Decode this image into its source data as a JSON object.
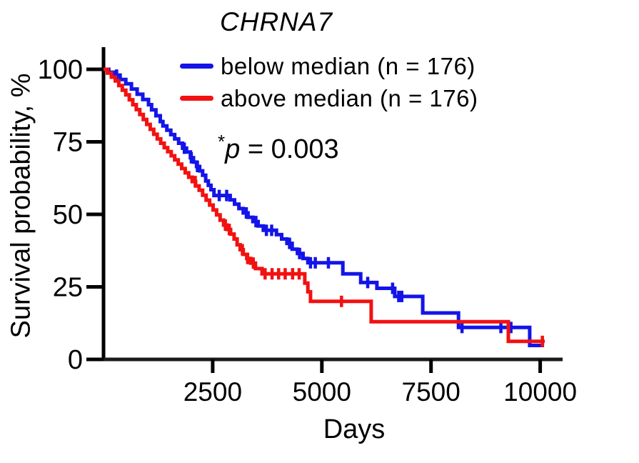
{
  "figure": {
    "title": "CHRNA7",
    "x_axis_label": "Days",
    "y_axis_label": "Survival probability, %",
    "p_value": {
      "star": "*",
      "variable": "p",
      "rest": " = 0.003"
    }
  },
  "legend": {
    "items": [
      {
        "label": "below median (n = 176)",
        "color": "#1414e8"
      },
      {
        "label": "above median (n = 176)",
        "color": "#f21111"
      }
    ]
  },
  "chart_data": {
    "type": "line",
    "subtype": "kaplan-meier-step",
    "title": "CHRNA7",
    "xlabel": "Days",
    "ylabel": "Survival probability, %",
    "annotation": "*p = 0.003",
    "xlim": [
      0,
      10500
    ],
    "ylim": [
      0,
      100
    ],
    "x_ticks": [
      "2500",
      "5000",
      "7500",
      "10000"
    ],
    "x_tick_values": [
      2500,
      5000,
      7500,
      10000
    ],
    "y_ticks": [
      "0",
      "25",
      "50",
      "75",
      "100"
    ],
    "y_tick_values": [
      0,
      25,
      50,
      75,
      100
    ],
    "grid": false,
    "legend_position": "top",
    "axis_color": "#000000",
    "series": [
      {
        "id": "below-median",
        "name": "below median (n = 176)",
        "color": "#1414e8",
        "end_day": 10090,
        "steps": [
          [
            0,
            100
          ],
          [
            120,
            99
          ],
          [
            250,
            98
          ],
          [
            380,
            96.5
          ],
          [
            510,
            95
          ],
          [
            640,
            93.2
          ],
          [
            770,
            91.4
          ],
          [
            900,
            89.6
          ],
          [
            1030,
            87.8
          ],
          [
            1100,
            86
          ],
          [
            1200,
            84
          ],
          [
            1300,
            82
          ],
          [
            1360,
            80.5
          ],
          [
            1450,
            79
          ],
          [
            1540,
            77.5
          ],
          [
            1630,
            76
          ],
          [
            1720,
            74.5
          ],
          [
            1810,
            72.8
          ],
          [
            1900,
            71.5
          ],
          [
            1990,
            69.5
          ],
          [
            2060,
            68
          ],
          [
            2130,
            66.5
          ],
          [
            2200,
            65
          ],
          [
            2270,
            63.5
          ],
          [
            2340,
            61.5
          ],
          [
            2400,
            60
          ],
          [
            2460,
            58.5
          ],
          [
            2530,
            56.5
          ],
          [
            2900,
            55
          ],
          [
            3000,
            53.5
          ],
          [
            3100,
            52
          ],
          [
            3200,
            50.5
          ],
          [
            3310,
            49
          ],
          [
            3420,
            47.5
          ],
          [
            3540,
            46
          ],
          [
            3660,
            44.5
          ],
          [
            3960,
            43
          ],
          [
            4080,
            41.5
          ],
          [
            4200,
            40
          ],
          [
            4320,
            38
          ],
          [
            4440,
            36.5
          ],
          [
            4570,
            34.8
          ],
          [
            4680,
            33.3
          ],
          [
            5480,
            29.5
          ],
          [
            5890,
            26.5
          ],
          [
            6260,
            24.5
          ],
          [
            6670,
            21.7
          ],
          [
            7310,
            16
          ],
          [
            8130,
            11
          ],
          [
            9760,
            4.8
          ]
        ],
        "censors": [
          [
            300,
            98
          ],
          [
            1850,
            72.8
          ],
          [
            2010,
            69.5
          ],
          [
            2150,
            66.5
          ],
          [
            2650,
            56.5
          ],
          [
            2820,
            56.5
          ],
          [
            3270,
            50.5
          ],
          [
            3490,
            47.5
          ],
          [
            3730,
            44.5
          ],
          [
            3850,
            44.5
          ],
          [
            4260,
            40
          ],
          [
            4490,
            36.5
          ],
          [
            4740,
            33.3
          ],
          [
            4850,
            33.3
          ],
          [
            5150,
            33.3
          ],
          [
            6050,
            26.5
          ],
          [
            6620,
            24.5
          ],
          [
            6760,
            21.7
          ],
          [
            6830,
            21.7
          ],
          [
            8210,
            11
          ],
          [
            9100,
            11
          ],
          [
            9330,
            11
          ]
        ]
      },
      {
        "id": "above-median",
        "name": "above median (n = 176)",
        "color": "#f21111",
        "end_day": 10105,
        "steps": [
          [
            0,
            100
          ],
          [
            90,
            98.7
          ],
          [
            180,
            97.3
          ],
          [
            270,
            96
          ],
          [
            350,
            94.4
          ],
          [
            430,
            92.8
          ],
          [
            510,
            91.2
          ],
          [
            590,
            89.5
          ],
          [
            670,
            87.8
          ],
          [
            750,
            86.1
          ],
          [
            830,
            84.4
          ],
          [
            910,
            82.7
          ],
          [
            990,
            81
          ],
          [
            1070,
            79.3
          ],
          [
            1150,
            77.6
          ],
          [
            1230,
            76
          ],
          [
            1310,
            74.5
          ],
          [
            1390,
            73
          ],
          [
            1470,
            71.6
          ],
          [
            1550,
            70.2
          ],
          [
            1630,
            68.8
          ],
          [
            1710,
            67.3
          ],
          [
            1790,
            65.8
          ],
          [
            1870,
            64.3
          ],
          [
            1950,
            62.8
          ],
          [
            2030,
            61.3
          ],
          [
            2110,
            59.8
          ],
          [
            2190,
            58.3
          ],
          [
            2270,
            56.6
          ],
          [
            2350,
            54.9
          ],
          [
            2430,
            53.2
          ],
          [
            2510,
            51.5
          ],
          [
            2590,
            49.8
          ],
          [
            2670,
            48
          ],
          [
            2750,
            46.3
          ],
          [
            2830,
            44.8
          ],
          [
            2910,
            43.2
          ],
          [
            2990,
            41.5
          ],
          [
            3060,
            39.5
          ],
          [
            3130,
            37.8
          ],
          [
            3200,
            36.2
          ],
          [
            3280,
            34.8
          ],
          [
            3370,
            33.2
          ],
          [
            3480,
            31.3
          ],
          [
            3630,
            29.5
          ],
          [
            4610,
            26.3
          ],
          [
            4680,
            23.3
          ],
          [
            4740,
            20
          ],
          [
            6130,
            13
          ],
          [
            9270,
            6.2
          ]
        ],
        "censors": [
          [
            2100,
            61.3
          ],
          [
            2790,
            46.3
          ],
          [
            2880,
            44.8
          ],
          [
            3180,
            37.8
          ],
          [
            3300,
            34.8
          ],
          [
            3430,
            33.2
          ],
          [
            3700,
            29.5
          ],
          [
            3860,
            29.5
          ],
          [
            4010,
            29.5
          ],
          [
            4160,
            29.5
          ],
          [
            4330,
            29.5
          ],
          [
            4480,
            29.5
          ],
          [
            5450,
            20
          ],
          [
            10050,
            6.2
          ]
        ]
      }
    ]
  }
}
